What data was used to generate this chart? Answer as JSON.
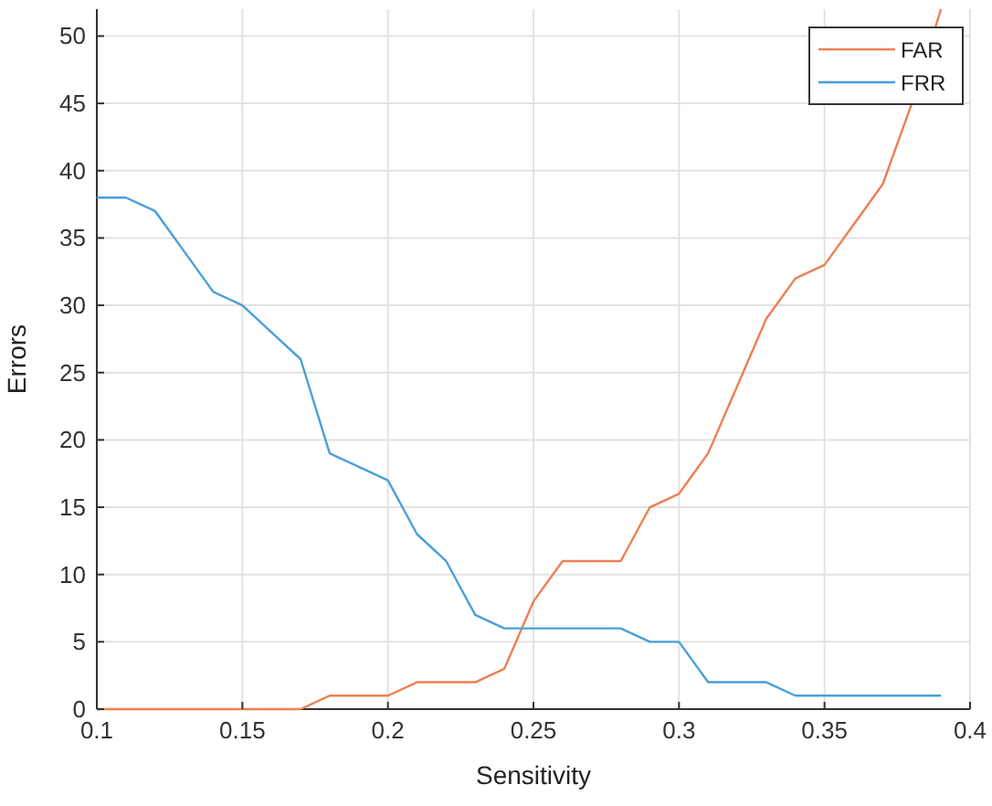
{
  "chart_data": {
    "type": "line",
    "xlabel": "Sensitivity",
    "ylabel": "Errors",
    "x": [
      0.1,
      0.11,
      0.12,
      0.13,
      0.14,
      0.15,
      0.16,
      0.17,
      0.18,
      0.19,
      0.2,
      0.21,
      0.22,
      0.23,
      0.24,
      0.25,
      0.26,
      0.27,
      0.28,
      0.29,
      0.3,
      0.31,
      0.32,
      0.33,
      0.34,
      0.35,
      0.36,
      0.37,
      0.38,
      0.39
    ],
    "series": [
      {
        "name": "FAR",
        "color": "#ee7f52",
        "values": [
          0,
          0,
          0,
          0,
          0,
          0,
          0,
          0,
          1,
          1,
          1,
          2,
          2,
          2,
          3,
          8,
          11,
          11,
          11,
          15,
          16,
          19,
          24,
          29,
          32,
          33,
          36,
          39,
          45,
          52
        ]
      },
      {
        "name": "FRR",
        "color": "#4a9fd8",
        "values": [
          38,
          38,
          37,
          34,
          31,
          30,
          28,
          26,
          19,
          18,
          17,
          13,
          11,
          7,
          6,
          6,
          6,
          6,
          6,
          5,
          5,
          2,
          2,
          2,
          1,
          1,
          1,
          1,
          1,
          1
        ]
      }
    ],
    "xlim": [
      0.1,
      0.4
    ],
    "xticks": [
      {
        "value": 0.1,
        "label": "0.1"
      },
      0.15,
      {
        "value": 0.2,
        "label": "0.2"
      },
      0.25,
      {
        "value": 0.3,
        "label": "0.3"
      },
      0.35,
      {
        "value": 0.4,
        "label": "0.4"
      }
    ],
    "ylim": [
      0,
      52
    ],
    "yticks": [
      0,
      5,
      10,
      15,
      20,
      25,
      30,
      35,
      40,
      45,
      50
    ],
    "grid": true,
    "legend": "top right",
    "marker": "none",
    "line_style": "solid"
  }
}
